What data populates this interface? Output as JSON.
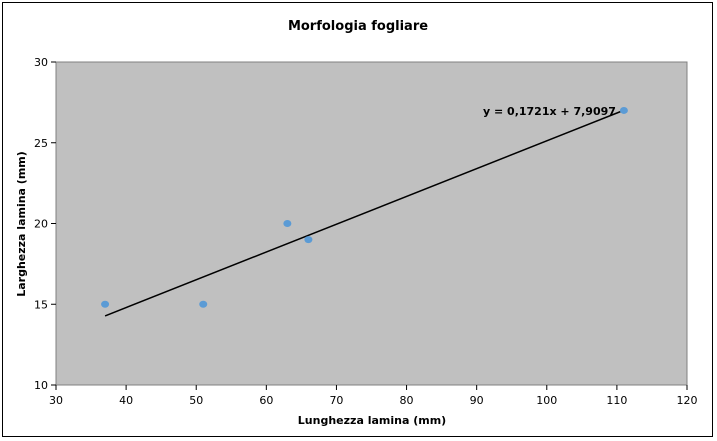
{
  "chart_data": {
    "type": "scatter",
    "title": "Morfologia fogliare",
    "xlabel": "Lunghezza lamina (mm)",
    "ylabel": "Larghezza lamina (mm)",
    "xlim": [
      30,
      120
    ],
    "ylim": [
      10,
      30
    ],
    "xticks": [
      30,
      40,
      50,
      60,
      70,
      80,
      90,
      100,
      110,
      120
    ],
    "yticks": [
      10,
      15,
      20,
      25,
      30
    ],
    "grid": false,
    "legend": "none",
    "series": [
      {
        "x": [
          37,
          51,
          63,
          66,
          111
        ],
        "y": [
          15,
          15,
          20,
          19,
          27
        ],
        "color": "#5b9bd5"
      }
    ],
    "trendline": {
      "slope": 0.1721,
      "intercept": 7.9097,
      "x_range": [
        37,
        111
      ],
      "equation_label": "y = 0,1721x + 7,9097",
      "color": "#000000"
    },
    "plot_background": "#c0c0c0"
  }
}
